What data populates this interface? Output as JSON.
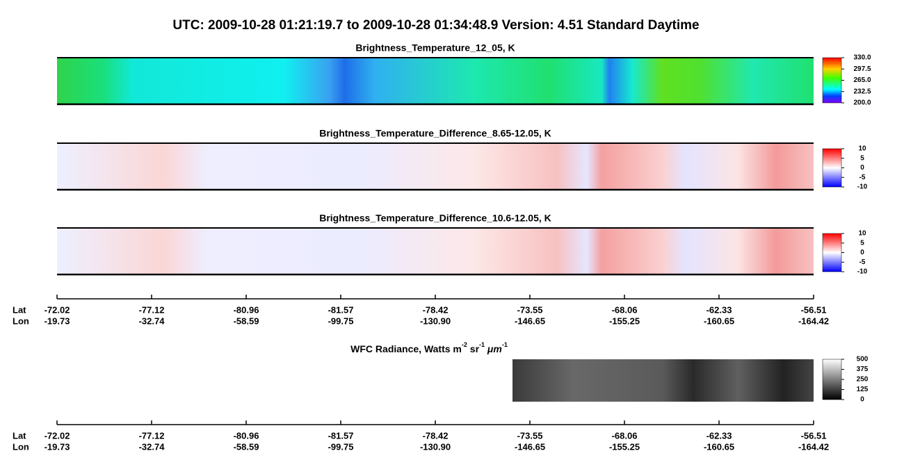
{
  "title": "UTC:  2009-10-28   01:21:19.7  to  2009-10-28   01:34:48.9    Version: 4.51  Standard Daytime",
  "panels": [
    {
      "title": "Brightness_Temperature_12_05, K",
      "colorbar_ticks": [
        "330.0",
        "297.5",
        "265.0",
        "232.5",
        "200.0"
      ]
    },
    {
      "title": "Brightness_Temperature_Difference_8.65-12.05, K",
      "colorbar_ticks": [
        "10",
        "5",
        "0",
        "-5",
        "-10"
      ]
    },
    {
      "title": "Brightness_Temperature_Difference_10.6-12.05, K",
      "colorbar_ticks": [
        "10",
        "5",
        "0",
        "-5",
        "-10"
      ]
    }
  ],
  "wfc": {
    "title_parts": [
      "WFC Radiance, Watts m",
      "-2",
      " sr",
      "-1",
      " μm",
      "-1"
    ],
    "colorbar_ticks": [
      "500",
      "375",
      "250",
      "125",
      "0"
    ]
  },
  "axes": [
    {
      "lat_label": "Lat",
      "lon_label": "Lon",
      "lat": [
        "-72.02",
        "-77.12",
        "-80.96",
        "-81.57",
        "-78.42",
        "-73.55",
        "-68.06",
        "-62.33",
        "-56.51"
      ],
      "lon": [
        "-19.73",
        "-32.74",
        "-58.59",
        "-99.75",
        "-130.90",
        "-146.65",
        "-155.25",
        "-160.65",
        "-164.42"
      ]
    },
    {
      "lat_label": "Lat",
      "lon_label": "Lon",
      "lat": [
        "-72.02",
        "-77.12",
        "-80.96",
        "-81.57",
        "-78.42",
        "-73.55",
        "-68.06",
        "-62.33",
        "-56.51"
      ],
      "lon": [
        "-19.73",
        "-32.74",
        "-58.59",
        "-99.75",
        "-130.90",
        "-146.65",
        "-155.25",
        "-160.65",
        "-164.42"
      ]
    }
  ]
}
